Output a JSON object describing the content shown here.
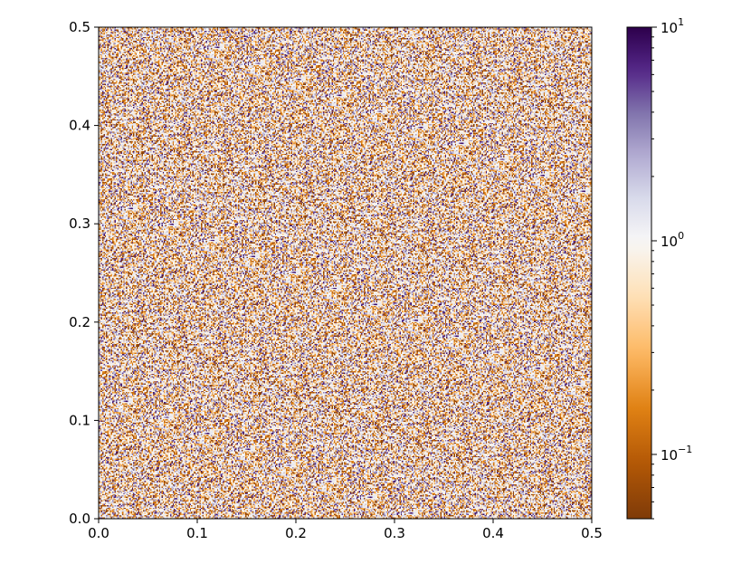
{
  "chart_data": {
    "type": "heatmap",
    "title": "",
    "xlabel": "",
    "ylabel": "",
    "xlim": [
      0.0,
      0.5
    ],
    "ylim": [
      0.0,
      0.5
    ],
    "x_ticks": [
      "0.0",
      "0.1",
      "0.2",
      "0.3",
      "0.4",
      "0.5"
    ],
    "y_ticks": [
      "0.0",
      "0.1",
      "0.2",
      "0.3",
      "0.4",
      "0.5"
    ],
    "grid": false,
    "colorbar": {
      "scale": "log",
      "vmin": 0.05,
      "vmax": 10,
      "colormap": "PuOr",
      "color_stops": [
        "#7f3b08",
        "#b35806",
        "#e08214",
        "#fdb863",
        "#fee0b6",
        "#f7f7f7",
        "#d8daeb",
        "#b2abd2",
        "#8073ac",
        "#542788",
        "#2d004b"
      ],
      "ticks": [
        {
          "value": 10,
          "base": "10",
          "exp": "1"
        },
        {
          "value": 1,
          "base": "10",
          "exp": "0"
        },
        {
          "value": 0.1,
          "base": "10",
          "exp": "−1"
        }
      ]
    },
    "grid_resolution": [
      400,
      400
    ],
    "value_distribution": "random noise; frequent near-white cells, dark brown values near 0.05–0.1 and purple values near 1–10 scattered uniformly"
  }
}
